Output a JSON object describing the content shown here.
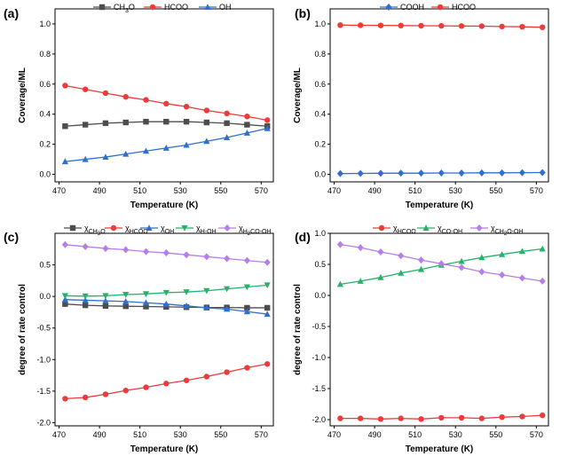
{
  "chart_data": [
    {
      "type": "line",
      "panel_label": "(a)",
      "xlabel": "Temperature (K)",
      "ylabel": "Coverage/ML",
      "xlim": [
        468,
        576
      ],
      "ylim": [
        -0.05,
        1.1
      ],
      "xticks": [
        470,
        490,
        510,
        530,
        550,
        570
      ],
      "xtick_labels": [
        "470",
        "490",
        "510",
        "530",
        "550",
        "570"
      ],
      "yticks": [
        0.0,
        0.2,
        0.4,
        0.6,
        0.8,
        1.0
      ],
      "ytick_labels": [
        "0.0",
        "0.2",
        "0.4",
        "0.6",
        "0.8",
        "1.0"
      ],
      "x": [
        473,
        483,
        493,
        503,
        513,
        523,
        533,
        543,
        553,
        563,
        573
      ],
      "series": [
        {
          "name": "CH3O",
          "legend": [
            {
              "t": "CH"
            },
            {
              "t": "3",
              "s": "sub"
            },
            {
              "t": "O"
            }
          ],
          "color": "#4d4d4d",
          "marker": "square",
          "values": [
            0.32,
            0.33,
            0.34,
            0.345,
            0.35,
            0.35,
            0.35,
            0.345,
            0.34,
            0.33,
            0.32
          ]
        },
        {
          "name": "HCOO",
          "legend": [
            {
              "t": "HCOO"
            }
          ],
          "color": "#ee3a3a",
          "marker": "circle",
          "values": [
            0.59,
            0.565,
            0.54,
            0.515,
            0.495,
            0.47,
            0.45,
            0.425,
            0.405,
            0.385,
            0.36
          ]
        },
        {
          "name": "OH",
          "legend": [
            {
              "t": "OH"
            }
          ],
          "color": "#2f6fcf",
          "marker": "triangle",
          "values": [
            0.085,
            0.1,
            0.115,
            0.135,
            0.155,
            0.175,
            0.195,
            0.22,
            0.245,
            0.275,
            0.305
          ]
        }
      ]
    },
    {
      "type": "line",
      "panel_label": "(b)",
      "xlabel": "Temperature (K)",
      "ylabel": "Coverage/ML",
      "xlim": [
        468,
        576
      ],
      "ylim": [
        -0.05,
        1.1
      ],
      "xticks": [
        470,
        490,
        510,
        530,
        550,
        570
      ],
      "xtick_labels": [
        "470",
        "490",
        "510",
        "530",
        "550",
        "570"
      ],
      "yticks": [
        0.0,
        0.2,
        0.4,
        0.6,
        0.8,
        1.0
      ],
      "ytick_labels": [
        "0.0",
        "0.2",
        "0.4",
        "0.6",
        "0.8",
        "1.0"
      ],
      "x": [
        473,
        483,
        493,
        503,
        513,
        523,
        533,
        543,
        553,
        563,
        573
      ],
      "series": [
        {
          "name": "COOH",
          "legend": [
            {
              "t": "COOH"
            }
          ],
          "color": "#2f6fcf",
          "marker": "diamond",
          "values": [
            0.005,
            0.006,
            0.007,
            0.008,
            0.008,
            0.009,
            0.009,
            0.01,
            0.01,
            0.011,
            0.012
          ]
        },
        {
          "name": "HCOO",
          "legend": [
            {
              "t": "HCOO"
            }
          ],
          "color": "#ee3a3a",
          "marker": "circle",
          "values": [
            0.992,
            0.991,
            0.99,
            0.989,
            0.988,
            0.987,
            0.986,
            0.985,
            0.983,
            0.981,
            0.978
          ]
        }
      ]
    },
    {
      "type": "line",
      "panel_label": "(c)",
      "xlabel": "Temperature (K)",
      "ylabel": "degree of rate control",
      "xlim": [
        468,
        576
      ],
      "ylim": [
        -2.05,
        1.0
      ],
      "xticks": [
        470,
        490,
        510,
        530,
        550,
        570
      ],
      "xtick_labels": [
        "470",
        "490",
        "510",
        "530",
        "550",
        "570"
      ],
      "yticks": [
        -2.0,
        -1.5,
        -1.0,
        -0.5,
        0.0,
        0.5
      ],
      "ytick_labels": [
        "-2.0",
        "-1.5",
        "-1.0",
        "-0.5",
        "0.0",
        "0.5"
      ],
      "x": [
        473,
        483,
        493,
        503,
        513,
        523,
        533,
        543,
        553,
        563,
        573
      ],
      "series": [
        {
          "name": "χCH3O",
          "legend": [
            {
              "t": "χ"
            },
            {
              "t": "CH",
              "s": "sub"
            },
            {
              "t": "3",
              "s": "subsub"
            },
            {
              "t": "O",
              "s": "sub"
            }
          ],
          "color": "#4d4d4d",
          "marker": "square",
          "values": [
            -0.12,
            -0.14,
            -0.15,
            -0.155,
            -0.16,
            -0.165,
            -0.17,
            -0.175,
            -0.175,
            -0.18,
            -0.18
          ]
        },
        {
          "name": "χHCOO",
          "legend": [
            {
              "t": "χ"
            },
            {
              "t": "HCOO",
              "s": "sub"
            }
          ],
          "color": "#ee3a3a",
          "marker": "circle",
          "values": [
            -1.62,
            -1.6,
            -1.55,
            -1.49,
            -1.44,
            -1.38,
            -1.33,
            -1.27,
            -1.2,
            -1.13,
            -1.07
          ]
        },
        {
          "name": "χOH",
          "legend": [
            {
              "t": "χ"
            },
            {
              "t": "OH",
              "s": "sub"
            }
          ],
          "color": "#2f6fcf",
          "marker": "triangle",
          "values": [
            -0.05,
            -0.06,
            -0.07,
            -0.08,
            -0.1,
            -0.12,
            -0.15,
            -0.18,
            -0.2,
            -0.24,
            -0.28
          ]
        },
        {
          "name": "χH-OH",
          "legend": [
            {
              "t": "χ"
            },
            {
              "t": "H-OH",
              "s": "sub"
            }
          ],
          "color": "#25b36b",
          "marker": "triangle-down",
          "values": [
            0.01,
            0.005,
            0.01,
            0.03,
            0.04,
            0.06,
            0.07,
            0.09,
            0.12,
            0.15,
            0.18
          ]
        },
        {
          "name": "χH2CO-OH",
          "legend": [
            {
              "t": "χ"
            },
            {
              "t": "H",
              "s": "sub"
            },
            {
              "t": "2",
              "s": "subsub"
            },
            {
              "t": "CO-OH",
              "s": "sub"
            }
          ],
          "color": "#b57ee8",
          "marker": "diamond",
          "values": [
            0.82,
            0.79,
            0.76,
            0.74,
            0.71,
            0.69,
            0.66,
            0.63,
            0.6,
            0.57,
            0.54
          ]
        }
      ]
    },
    {
      "type": "line",
      "panel_label": "(d)",
      "xlabel": "Temperature (K)",
      "ylabel": "degree of rate control",
      "xlim": [
        468,
        576
      ],
      "ylim": [
        -2.1,
        1.0
      ],
      "xticks": [
        470,
        490,
        510,
        530,
        550,
        570
      ],
      "xtick_labels": [
        "470",
        "490",
        "510",
        "530",
        "550",
        "570"
      ],
      "yticks": [
        -2.0,
        -1.5,
        -1.0,
        -0.5,
        0.0,
        0.5,
        1.0
      ],
      "ytick_labels": [
        "-2.0",
        "-1.5",
        "-1.0",
        "-0.5",
        "0.0",
        "0.5",
        "1.0"
      ],
      "x": [
        473,
        483,
        493,
        503,
        513,
        523,
        533,
        543,
        553,
        563,
        573
      ],
      "series": [
        {
          "name": "χHCOO",
          "legend": [
            {
              "t": "χ"
            },
            {
              "t": "HCOO",
              "s": "sub"
            }
          ],
          "color": "#ee3a3a",
          "marker": "circle",
          "values": [
            -1.98,
            -1.98,
            -1.99,
            -1.98,
            -1.99,
            -1.97,
            -1.97,
            -1.98,
            -1.96,
            -1.95,
            -1.93
          ]
        },
        {
          "name": "χCO-OH",
          "legend": [
            {
              "t": "χ"
            },
            {
              "t": "CO-OH",
              "s": "sub"
            }
          ],
          "color": "#25b36b",
          "marker": "triangle",
          "values": [
            0.18,
            0.23,
            0.29,
            0.36,
            0.42,
            0.49,
            0.55,
            0.61,
            0.66,
            0.71,
            0.75
          ]
        },
        {
          "name": "χCH2O-OH",
          "legend": [
            {
              "t": "χ"
            },
            {
              "t": "CH",
              "s": "sub"
            },
            {
              "t": "2",
              "s": "subsub"
            },
            {
              "t": "O-OH",
              "s": "sub"
            }
          ],
          "color": "#b57ee8",
          "marker": "diamond",
          "values": [
            0.82,
            0.77,
            0.7,
            0.64,
            0.57,
            0.51,
            0.45,
            0.38,
            0.33,
            0.28,
            0.23
          ]
        }
      ]
    }
  ]
}
